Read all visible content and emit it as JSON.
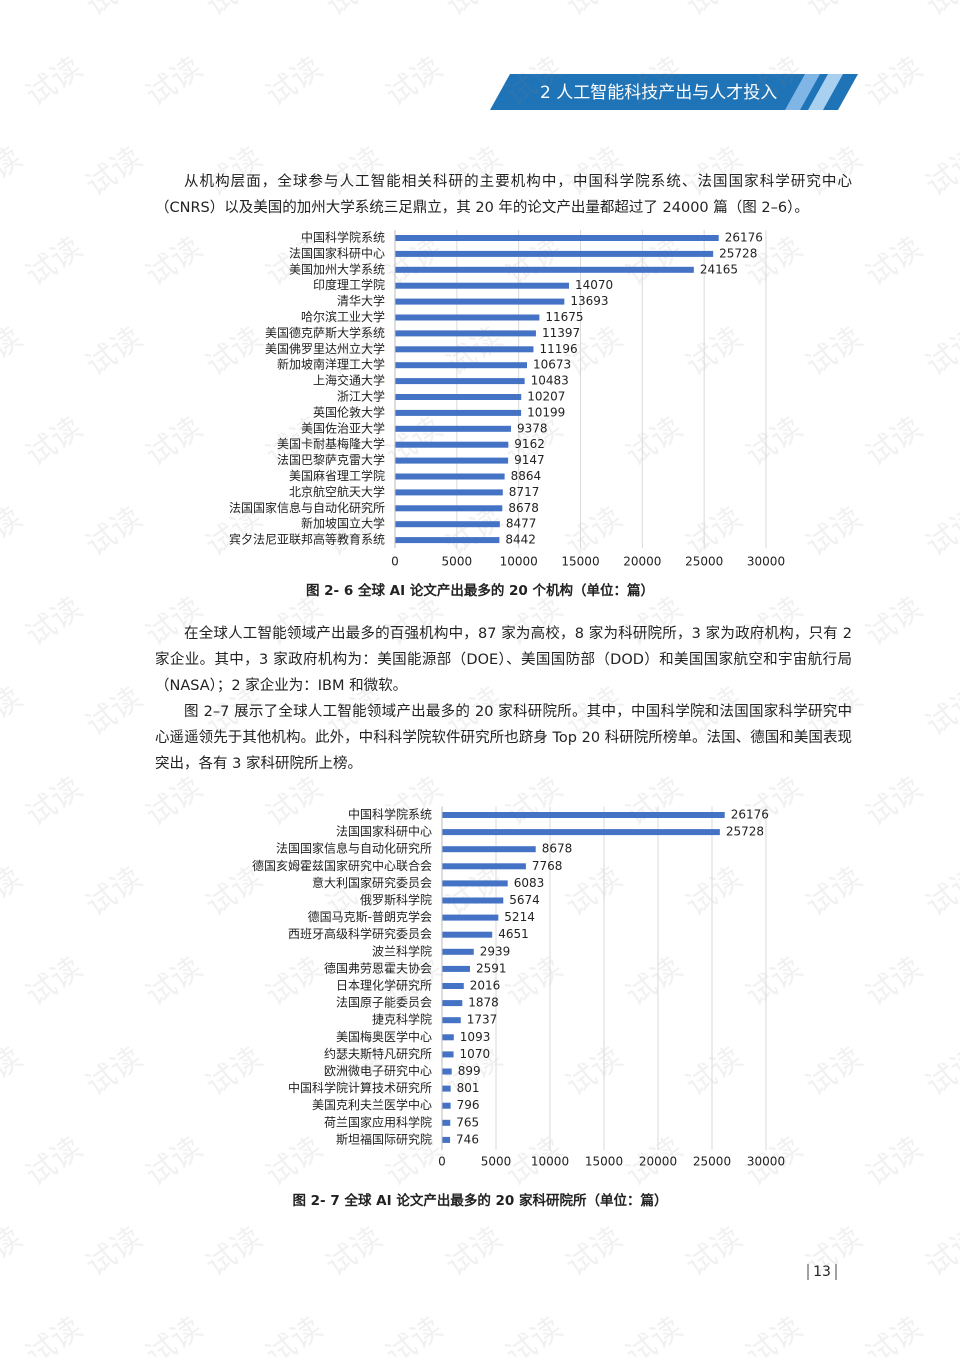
{
  "header": {
    "title": "2 人工智能科技产出与人才投入"
  },
  "watermark": "试读",
  "paragraphs": [
    "从机构层面，全球参与人工智能相关科研的主要机构中，中国科学院系统、法国国家科学研究中心（CNRS）以及美国的加州大学系统三足鼎立，其 20 年的论文产出量都超过了 24000 篇（图 2–6）。",
    "在全球人工智能领域产出最多的百强机构中，87 家为高校，8 家为科研院所，3 家为政府机构，只有 2 家企业。其中，3 家政府机构为：美国能源部（DOE）、美国国防部（DOD）和美国国家航空和宇宙航行局（NASA）；2 家企业为：IBM 和微软。",
    "图 2–7 展示了全球人工智能领域产出最多的 20 家科研院所。其中，中国科学院和法国国家科学研究中心遥遥领先于其他机构。此外，中科科学院软件研究所也跻身 Top 20 科研院所榜单。法国、德国和美国表现突出，各有 3 家科研院所上榜。"
  ],
  "chart_data": [
    {
      "type": "bar",
      "orientation": "horizontal",
      "title": "图 2- 6  全球 AI 论文产出最多的 20 个机构（单位：篇）",
      "categories": [
        "中国科学院系统",
        "法国国家科研中心",
        "美国加州大学系统",
        "印度理工学院",
        "清华大学",
        "哈尔滨工业大学",
        "美国德克萨斯大学系统",
        "美国佛罗里达州立大学",
        "新加坡南洋理工大学",
        "上海交通大学",
        "浙江大学",
        "英国伦敦大学",
        "美国佐治亚大学",
        "美国卡耐基梅隆大学",
        "法国巴黎萨克雷大学",
        "美国麻省理工学院",
        "北京航空航天大学",
        "法国国家信息与自动化研究所",
        "新加坡国立大学",
        "宾夕法尼亚联邦高等教育系统"
      ],
      "values": [
        26176,
        25728,
        24165,
        14070,
        13693,
        11675,
        11397,
        11196,
        10673,
        10483,
        10207,
        10199,
        9378,
        9162,
        9147,
        8864,
        8717,
        8678,
        8477,
        8442
      ],
      "color": "#4472c4",
      "xlim": [
        0,
        30000
      ],
      "xticks": [
        0,
        5000,
        10000,
        15000,
        20000,
        25000,
        30000
      ],
      "grid": true
    },
    {
      "type": "bar",
      "orientation": "horizontal",
      "title": "图 2- 7  全球 AI 论文产出最多的 20 家科研院所（单位：篇）",
      "categories": [
        "中国科学院系统",
        "法国国家科研中心",
        "法国国家信息与自动化研究所",
        "德国亥姆霍兹国家研究中心联合会",
        "意大利国家研究委员会",
        "俄罗斯科学院",
        "德国马克斯-普朗克学会",
        "西班牙高级科学研究委员会",
        "波兰科学院",
        "德国弗劳恩霍夫协会",
        "日本理化学研究所",
        "法国原子能委员会",
        "捷克科学院",
        "美国梅奥医学中心",
        "约瑟夫斯特凡研究所",
        "欧洲微电子研究中心",
        "中国科学院计算技术研究所",
        "美国克利夫兰医学中心",
        "荷兰国家应用科学院",
        "斯坦福国际研究院"
      ],
      "values": [
        26176,
        25728,
        8678,
        7768,
        6083,
        5674,
        5214,
        4651,
        2939,
        2591,
        2016,
        1878,
        1737,
        1093,
        1070,
        899,
        801,
        796,
        765,
        746
      ],
      "color": "#4472c4",
      "xlim": [
        0,
        30000
      ],
      "xticks": [
        0,
        5000,
        10000,
        15000,
        20000,
        25000,
        30000
      ],
      "grid": true
    }
  ],
  "page_number": "13"
}
